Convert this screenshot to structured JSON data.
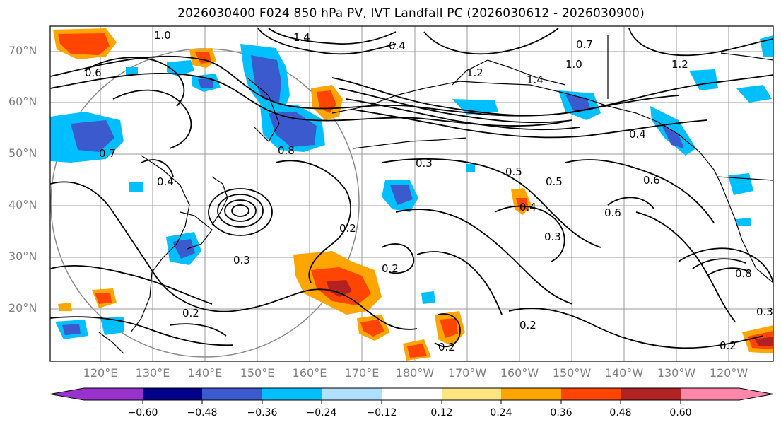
{
  "title": "2026030400 F024 850 hPa PV, IVT Landfall PC (2026030612 - 2026030900)",
  "lat_labels": [
    "70°N",
    "60°N",
    "50°N",
    "40°N",
    "30°N",
    "20°N"
  ],
  "lon_labels": [
    "120°E",
    "130°E",
    "140°E",
    "150°E",
    "160°E",
    "170°E",
    "180°W",
    "170°W",
    "160°W",
    "150°W",
    "140°W",
    "130°W",
    "120°W"
  ],
  "colorbar": {
    "ticks": [
      "−0.60",
      "−0.48",
      "−0.36",
      "−0.24",
      "−0.12",
      "0.12",
      "0.24",
      "0.36",
      "0.48",
      "0.60"
    ],
    "colors": [
      "#9932cc",
      "#00008b",
      "#3a5acd",
      "#00bfff",
      "#b0e0ff",
      "#ffffff",
      "#ffe680",
      "#ffa500",
      "#ff4500",
      "#b22222",
      "#ff88aa"
    ]
  },
  "contour_labels": [
    "1.0",
    "1.4",
    "0.7",
    "0.4",
    "0.6",
    "1.0",
    "1.2",
    "0.5",
    "0.4",
    "0.3",
    "0.5",
    "0.6",
    "0.6",
    "0.2",
    "0.3",
    "0.2",
    "0.2",
    "0.2",
    "0.2",
    "0.3",
    "0.8",
    "1.2",
    "1.4",
    "0.7",
    "0.8",
    "0.4",
    "0.4",
    "0.3",
    "0.2"
  ]
}
